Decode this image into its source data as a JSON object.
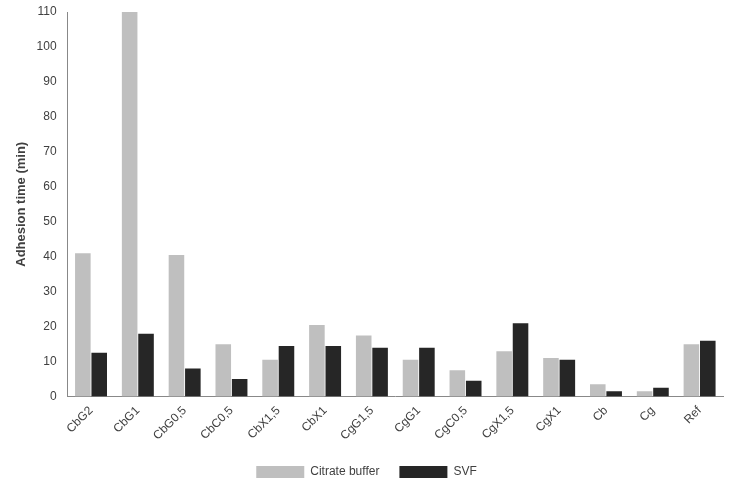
{
  "chart_data": {
    "type": "bar",
    "y_label": "Adhesion time (min)",
    "categories": [
      "CbG2",
      "CbG1",
      "CbG0,5",
      "CbC0,5",
      "CbX1,5",
      "CbX1",
      "CgG1,5",
      "CgG1",
      "CgC0,5",
      "CgX1,5",
      "CgX1",
      "Cb",
      "Cg",
      "Ref"
    ],
    "series": [
      {
        "name": "Citrate buffer",
        "color": "#bfbfbf",
        "values": [
          41,
          110,
          40.5,
          15,
          10.5,
          20.5,
          17.5,
          10.5,
          7.5,
          13,
          11,
          3.5,
          1.5,
          15
        ]
      },
      {
        "name": "SVF",
        "color": "#262626",
        "values": [
          12.5,
          18,
          8,
          5,
          14.5,
          14.5,
          14,
          14,
          4.5,
          21,
          10.5,
          1.5,
          2.5,
          16
        ]
      }
    ],
    "ylim": [
      0,
      110
    ],
    "yticks": [
      0,
      10,
      20,
      30,
      40,
      50,
      60,
      70,
      80,
      90,
      100,
      110
    ],
    "grid": false,
    "legend": "bottom"
  }
}
